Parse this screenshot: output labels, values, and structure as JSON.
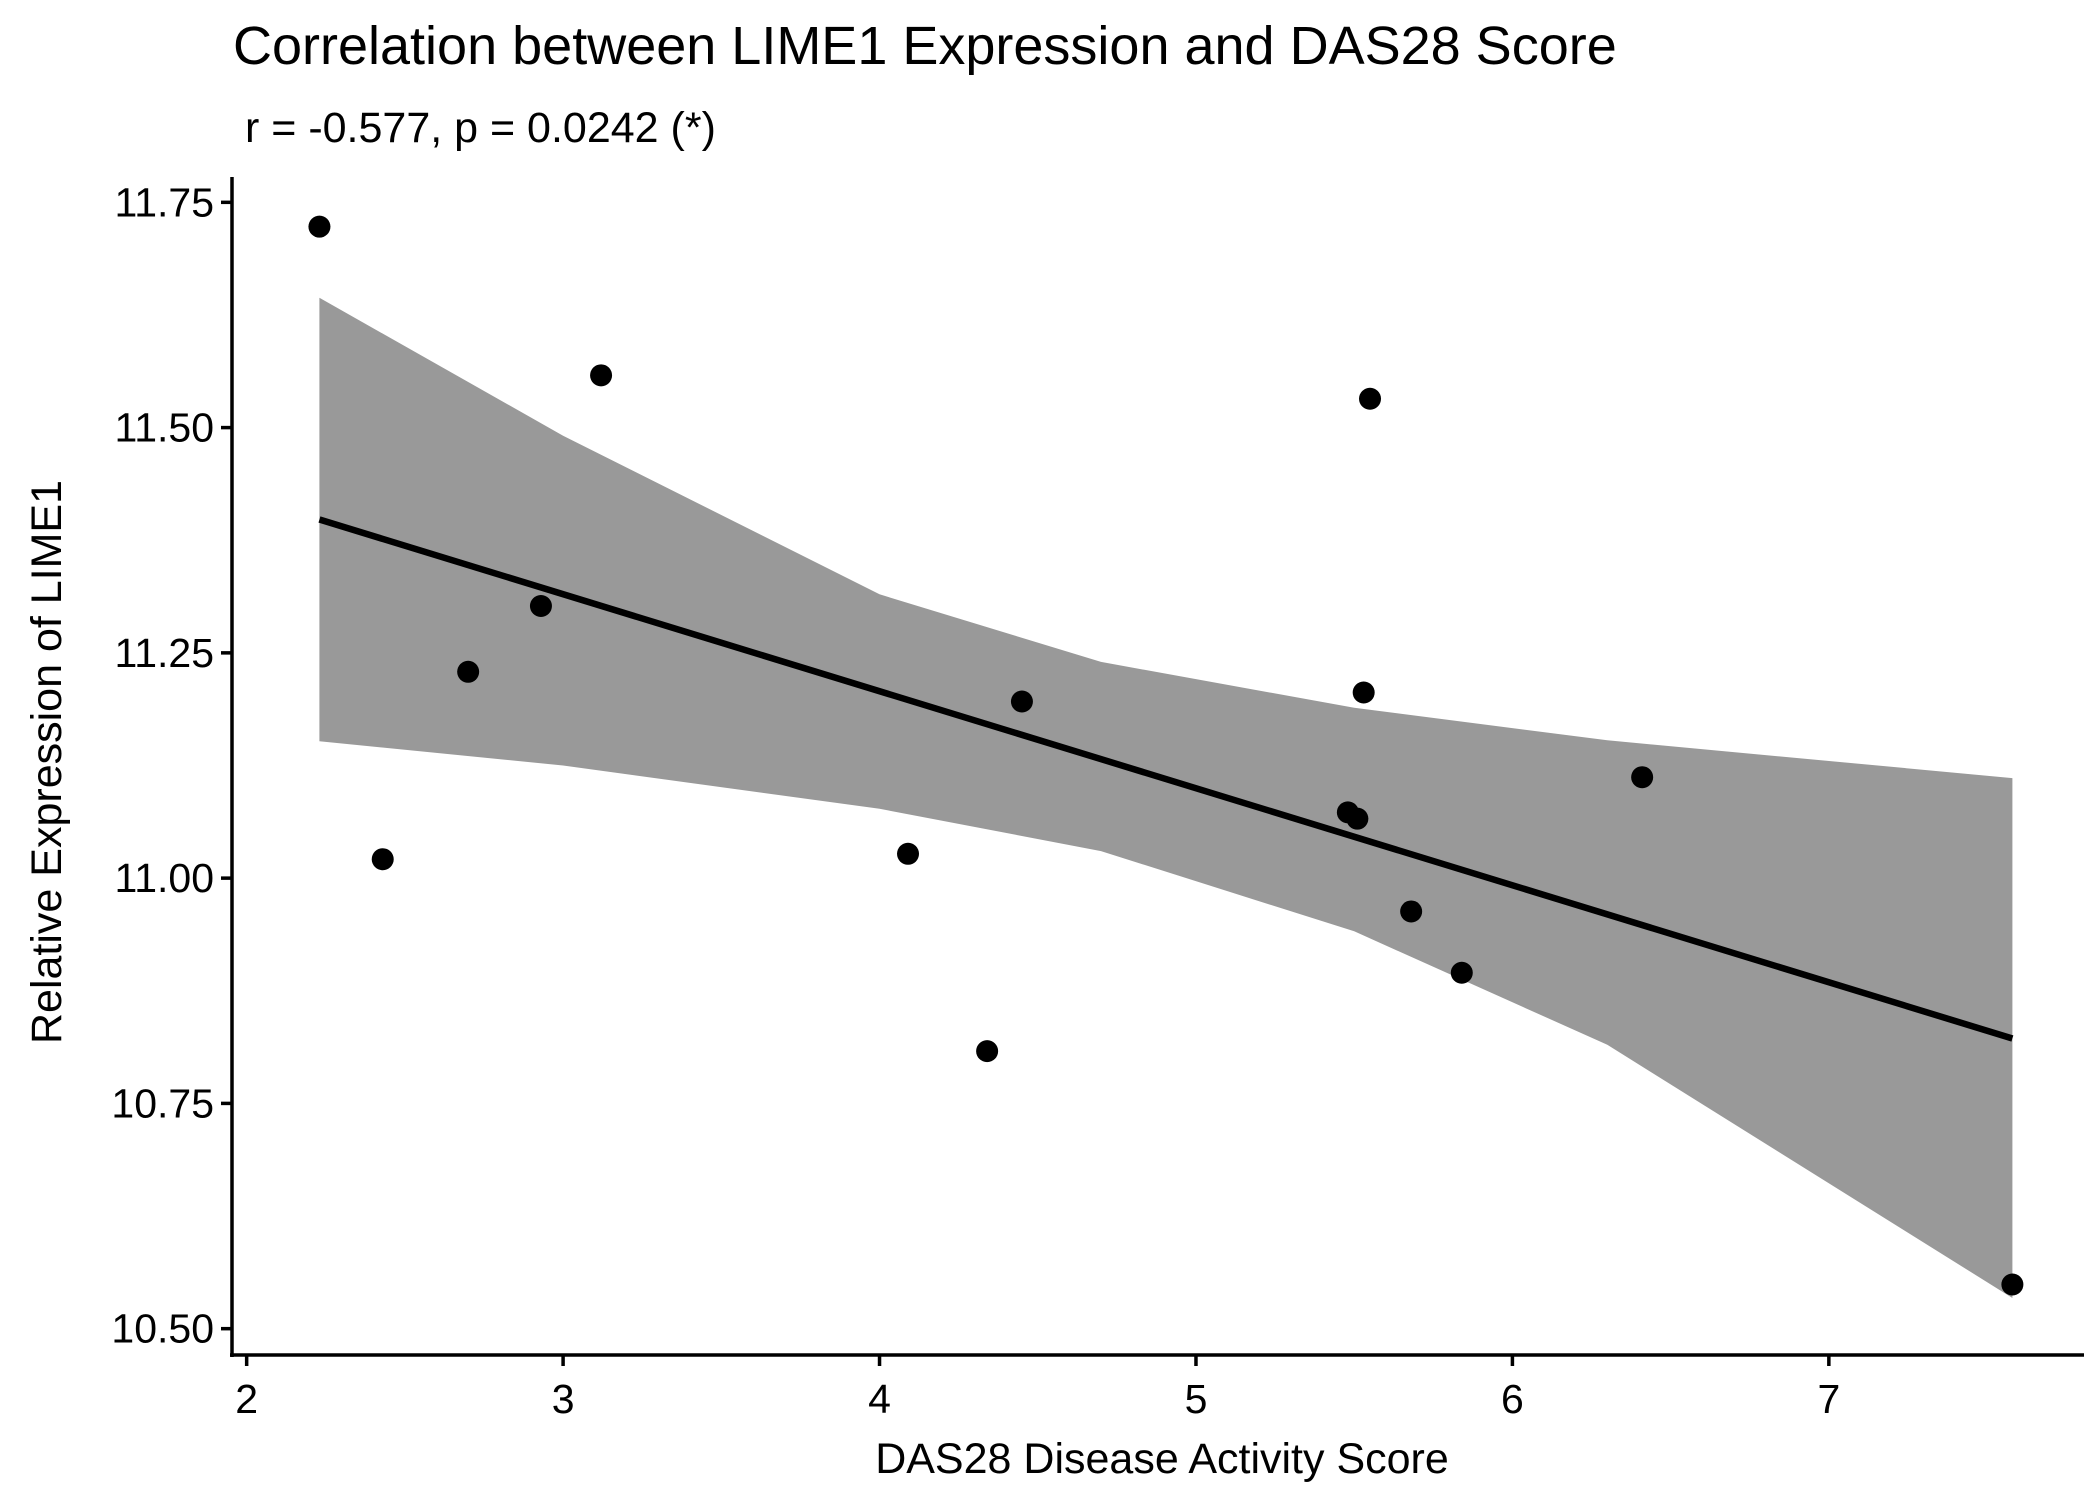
{
  "chart_data": {
    "type": "scatter",
    "title": "Correlation between LIME1 Expression and DAS28 Score",
    "subtitle": "r = -0.577, p = 0.0242 (*)",
    "xlabel": "DAS28 Disease Activity Score",
    "ylabel": "Relative Expression of LIME1",
    "xlim": [
      1.96,
      7.8
    ],
    "ylim": [
      10.473,
      11.777
    ],
    "x_ticks": [
      2,
      3,
      4,
      5,
      6,
      7
    ],
    "x_tick_labels": [
      "2",
      "3",
      "4",
      "5",
      "6",
      "7"
    ],
    "y_ticks": [
      10.5,
      10.75,
      11.0,
      11.25,
      11.5,
      11.75
    ],
    "y_tick_labels": [
      "10.50",
      "10.75",
      "11.00",
      "11.25",
      "11.50",
      "11.75"
    ],
    "grid": false,
    "legend": "none",
    "points": [
      {
        "x": 2.23,
        "y": 11.723
      },
      {
        "x": 2.43,
        "y": 11.021
      },
      {
        "x": 2.7,
        "y": 11.229
      },
      {
        "x": 2.93,
        "y": 11.302
      },
      {
        "x": 3.12,
        "y": 11.558
      },
      {
        "x": 4.09,
        "y": 11.027
      },
      {
        "x": 4.34,
        "y": 10.808
      },
      {
        "x": 4.45,
        "y": 11.196
      },
      {
        "x": 5.48,
        "y": 11.073
      },
      {
        "x": 5.51,
        "y": 11.066
      },
      {
        "x": 5.53,
        "y": 11.206
      },
      {
        "x": 5.55,
        "y": 11.532
      },
      {
        "x": 5.68,
        "y": 10.963
      },
      {
        "x": 5.84,
        "y": 10.895
      },
      {
        "x": 6.41,
        "y": 11.112
      },
      {
        "x": 7.58,
        "y": 10.549
      }
    ],
    "fit_line": {
      "x": [
        2.23,
        7.58
      ],
      "y": [
        11.398,
        10.822
      ]
    },
    "confidence_band": {
      "x": [
        2.23,
        3.0,
        4.0,
        4.7,
        5.5,
        6.3,
        7.58
      ],
      "upper": [
        11.644,
        11.491,
        11.315,
        11.24,
        11.189,
        11.153,
        11.111
      ],
      "lower": [
        11.152,
        11.125,
        11.077,
        11.03,
        10.941,
        10.815,
        10.534
      ]
    },
    "colors": {
      "points": "#000000",
      "fit_line": "#000000",
      "band": "#999999",
      "axis": "#000000"
    }
  }
}
